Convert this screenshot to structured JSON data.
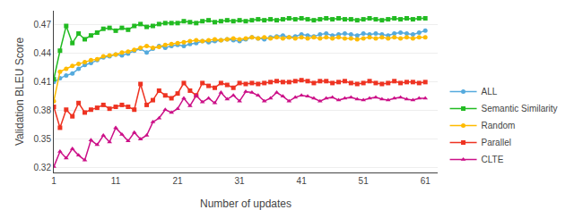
{
  "chart_data": {
    "type": "line",
    "xlabel": "Number of updates",
    "ylabel": "Validation BLEU Score",
    "x": [
      1,
      2,
      3,
      4,
      5,
      6,
      7,
      8,
      9,
      10,
      11,
      12,
      13,
      14,
      15,
      16,
      17,
      18,
      19,
      20,
      21,
      22,
      23,
      24,
      25,
      26,
      27,
      28,
      29,
      30,
      31,
      32,
      33,
      34,
      35,
      36,
      37,
      38,
      39,
      40,
      41,
      42,
      43,
      44,
      45,
      46,
      47,
      48,
      49,
      50,
      51,
      52,
      53,
      54,
      55,
      56,
      57,
      58,
      59,
      60,
      61
    ],
    "xlim": [
      1,
      63
    ],
    "xticks": [
      1,
      11,
      21,
      31,
      41,
      51,
      61
    ],
    "ylim": [
      0.315,
      0.485
    ],
    "yticks": [
      0.32,
      0.35,
      0.38,
      0.41,
      0.44,
      0.47
    ],
    "grid": true,
    "legend": "lower right",
    "series": [
      {
        "name": "ALL",
        "color": "#55aadd",
        "marker": "circle",
        "values": [
          0.41,
          0.414,
          0.417,
          0.419,
          0.424,
          0.428,
          0.43,
          0.433,
          0.436,
          0.437,
          0.439,
          0.438,
          0.44,
          0.443,
          0.445,
          0.441,
          0.445,
          0.448,
          0.446,
          0.448,
          0.449,
          0.448,
          0.45,
          0.451,
          0.453,
          0.452,
          0.453,
          0.454,
          0.455,
          0.454,
          0.453,
          0.455,
          0.457,
          0.456,
          0.455,
          0.457,
          0.458,
          0.459,
          0.457,
          0.458,
          0.46,
          0.459,
          0.458,
          0.46,
          0.461,
          0.459,
          0.46,
          0.461,
          0.46,
          0.459,
          0.461,
          0.46,
          0.461,
          0.46,
          0.459,
          0.461,
          0.462,
          0.461,
          0.46,
          0.462,
          0.464
        ]
      },
      {
        "name": "Semantic Similarity",
        "color": "#22bb22",
        "marker": "square",
        "values": [
          0.413,
          0.443,
          0.469,
          0.451,
          0.461,
          0.455,
          0.459,
          0.462,
          0.466,
          0.467,
          0.464,
          0.467,
          0.465,
          0.469,
          0.471,
          0.468,
          0.469,
          0.471,
          0.472,
          0.472,
          0.472,
          0.474,
          0.473,
          0.472,
          0.474,
          0.475,
          0.473,
          0.474,
          0.475,
          0.474,
          0.475,
          0.474,
          0.475,
          0.476,
          0.475,
          0.476,
          0.475,
          0.476,
          0.477,
          0.476,
          0.477,
          0.476,
          0.475,
          0.476,
          0.477,
          0.476,
          0.477,
          0.476,
          0.476,
          0.475,
          0.476,
          0.477,
          0.476,
          0.475,
          0.476,
          0.477,
          0.476,
          0.477,
          0.476,
          0.477,
          0.477
        ]
      },
      {
        "name": "Random",
        "color": "#ffbb00",
        "marker": "circle",
        "values": [
          0.39,
          0.421,
          0.424,
          0.427,
          0.429,
          0.431,
          0.433,
          0.434,
          0.437,
          0.438,
          0.439,
          0.441,
          0.442,
          0.444,
          0.446,
          0.448,
          0.446,
          0.447,
          0.449,
          0.45,
          0.451,
          0.452,
          0.453,
          0.454,
          0.453,
          0.454,
          0.455,
          0.454,
          0.455,
          0.456,
          0.455,
          0.456,
          0.457,
          0.456,
          0.457,
          0.456,
          0.457,
          0.456,
          0.457,
          0.456,
          0.457,
          0.456,
          0.457,
          0.456,
          0.457,
          0.456,
          0.457,
          0.456,
          0.456,
          0.455,
          0.456,
          0.457,
          0.456,
          0.457,
          0.456,
          0.457,
          0.456,
          0.457,
          0.456,
          0.457,
          0.457
        ]
      },
      {
        "name": "Parallel",
        "color": "#ee3322",
        "marker": "square",
        "values": [
          0.384,
          0.362,
          0.381,
          0.374,
          0.388,
          0.378,
          0.381,
          0.383,
          0.386,
          0.382,
          0.384,
          0.386,
          0.384,
          0.381,
          0.408,
          0.386,
          0.391,
          0.401,
          0.396,
          0.393,
          0.398,
          0.409,
          0.401,
          0.396,
          0.409,
          0.406,
          0.404,
          0.409,
          0.407,
          0.404,
          0.409,
          0.408,
          0.409,
          0.408,
          0.409,
          0.41,
          0.411,
          0.41,
          0.41,
          0.411,
          0.412,
          0.411,
          0.409,
          0.411,
          0.411,
          0.409,
          0.41,
          0.411,
          0.409,
          0.408,
          0.409,
          0.411,
          0.409,
          0.408,
          0.409,
          0.411,
          0.409,
          0.41,
          0.41,
          0.409,
          0.41
        ]
      },
      {
        "name": "CLTE",
        "color": "#cc1188",
        "marker": "triangle-up",
        "values": [
          0.321,
          0.337,
          0.33,
          0.34,
          0.333,
          0.328,
          0.349,
          0.344,
          0.354,
          0.347,
          0.362,
          0.355,
          0.348,
          0.357,
          0.35,
          0.354,
          0.368,
          0.372,
          0.381,
          0.378,
          0.382,
          0.393,
          0.385,
          0.396,
          0.389,
          0.393,
          0.388,
          0.399,
          0.392,
          0.396,
          0.39,
          0.4,
          0.399,
          0.396,
          0.39,
          0.393,
          0.399,
          0.395,
          0.39,
          0.394,
          0.396,
          0.395,
          0.393,
          0.39,
          0.393,
          0.394,
          0.391,
          0.393,
          0.394,
          0.392,
          0.391,
          0.393,
          0.394,
          0.392,
          0.391,
          0.393,
          0.394,
          0.392,
          0.391,
          0.393,
          0.393
        ]
      }
    ]
  }
}
